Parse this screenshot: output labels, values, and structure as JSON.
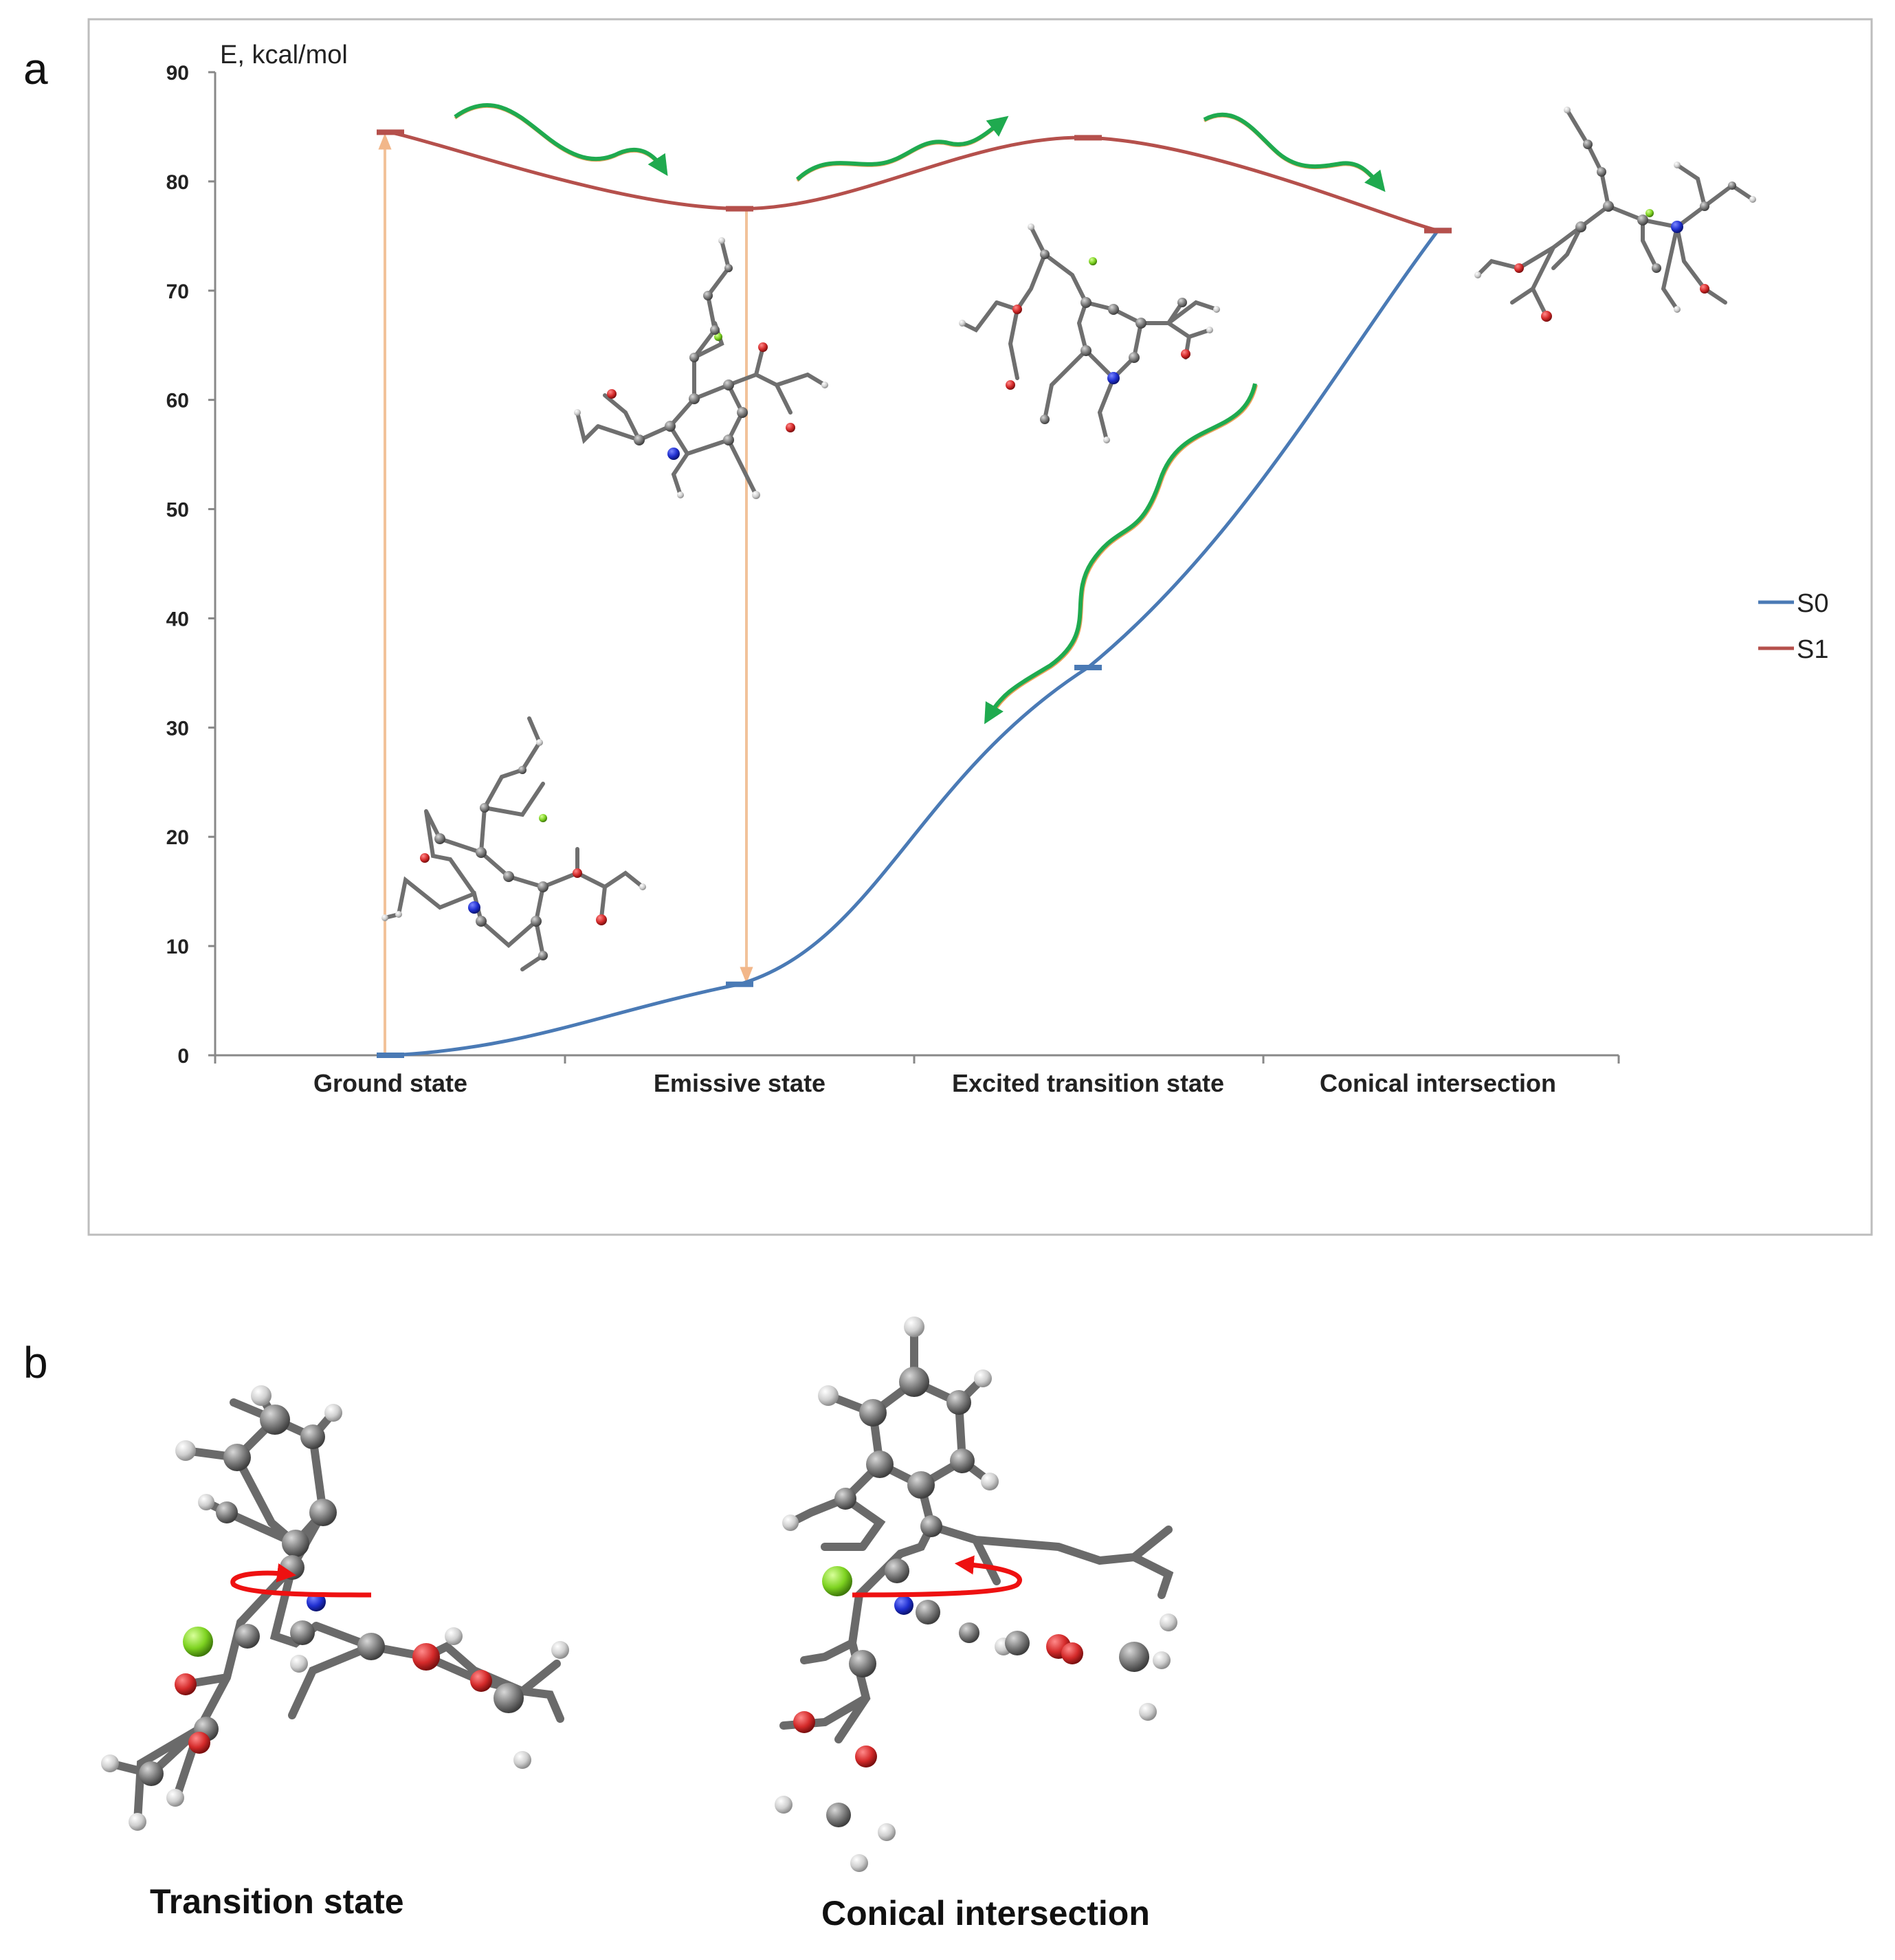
{
  "panels": {
    "a": "a",
    "b": "b"
  },
  "chart_data": {
    "type": "line",
    "title": "",
    "ylabel": "E, kcal/mol",
    "xlabel": "",
    "categories": [
      "Ground state",
      "Emissive state",
      "Excited transition state",
      "Conical intersection"
    ],
    "ylim": [
      0,
      90
    ],
    "yticks": [
      0,
      10,
      20,
      30,
      40,
      50,
      60,
      70,
      80,
      90
    ],
    "grid": false,
    "legend_position": "right",
    "series": [
      {
        "name": "S0",
        "color": "#4a7ab5",
        "values": [
          0,
          6.5,
          35.5,
          75.5
        ]
      },
      {
        "name": "S1",
        "color": "#b5504c",
        "values": [
          84.5,
          77.5,
          84,
          75.5
        ]
      }
    ],
    "vertical_transitions": [
      {
        "type": "absorption",
        "category": "Ground state",
        "from": 0,
        "to": 84.5,
        "color": "#f2c29a"
      },
      {
        "type": "emission",
        "category": "Emissive state",
        "from": 77.5,
        "to": 6.5,
        "color": "#f2c29a"
      }
    ],
    "relaxation_arrow_color": "#1faa4f"
  },
  "panel_b": {
    "structures": [
      {
        "label": "Transition state"
      },
      {
        "label": "Conical intersection"
      }
    ],
    "rotation_arrow_color": "#ee1111"
  },
  "atom_colors": {
    "C": "#6e6e6e",
    "H": "#cfcfcf",
    "N": "#1f2fd0",
    "O": "#d42a2a",
    "F": "#7ed321"
  }
}
